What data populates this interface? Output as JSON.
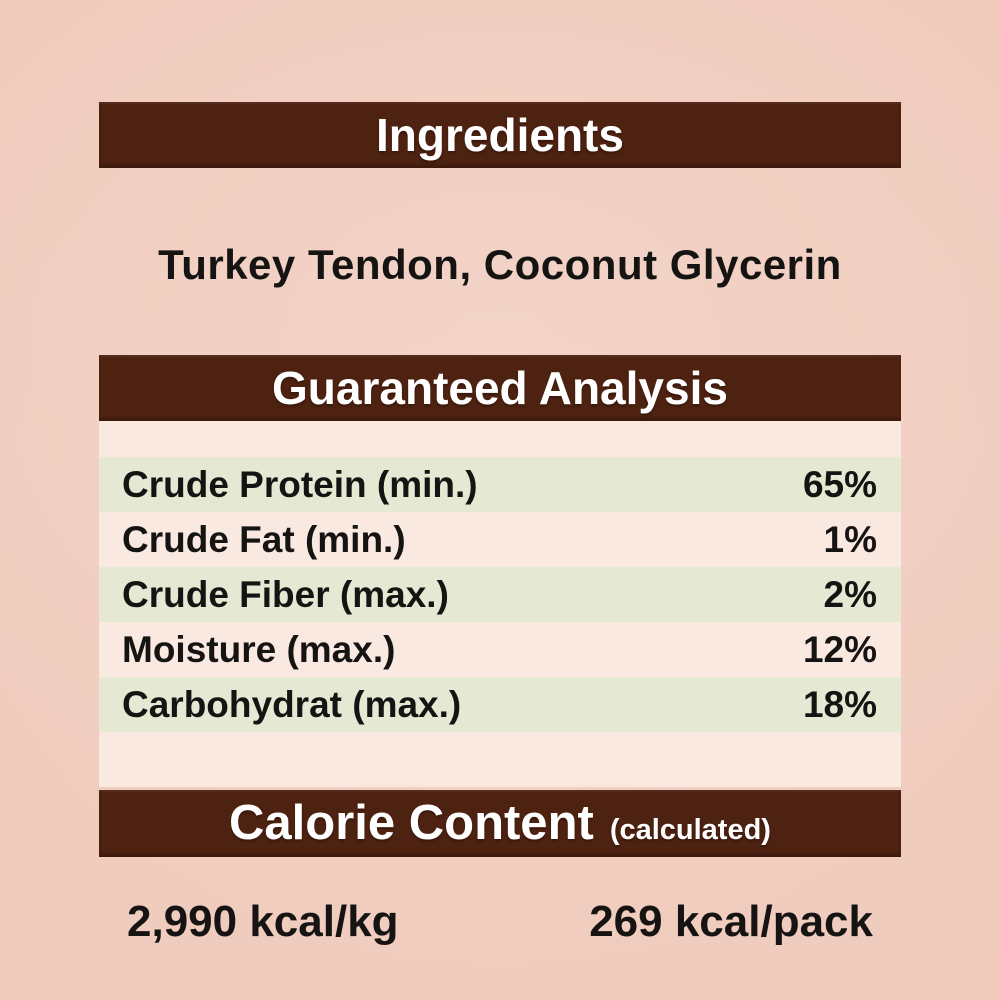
{
  "label": {
    "ingredients_section": {
      "title": "Ingredients",
      "content": "Turkey Tendon, Coconut Glycerin"
    },
    "analysis_section": {
      "title": "Guaranteed Analysis",
      "rows": [
        {
          "name": "Crude Protein (min.)",
          "value": "65%"
        },
        {
          "name": "Crude Fat (min.)",
          "value": "1%"
        },
        {
          "name": "Crude Fiber (max.)",
          "value": "2%"
        },
        {
          "name": "Moisture (max.)",
          "value": "12%"
        },
        {
          "name": "Carbohydrat (max.)",
          "value": "18%"
        }
      ]
    },
    "calorie_section": {
      "title": "Calorie Content",
      "subtitle": "(calculated)",
      "per_kg": "2,990 kcal/kg",
      "per_pack": "269 kcal/pack"
    }
  },
  "colors": {
    "background": "#f2cec0",
    "banner": "#4e2211",
    "banner_text": "#ffffff",
    "row_green": "#e5e8d2",
    "panel_pink": "#f9e9e1",
    "text": "#161413"
  }
}
